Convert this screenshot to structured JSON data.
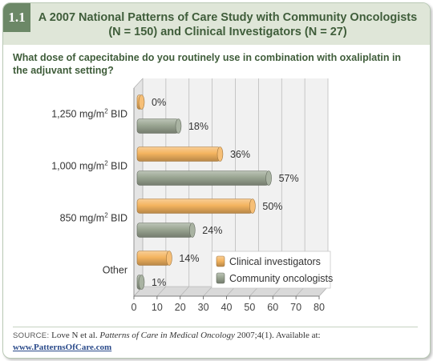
{
  "figure": {
    "number": "1.1",
    "title_line1": "A 2007 National Patterns of Care Study with Community Oncologists",
    "title_line2": "(N = 150) and Clinical Investigators (N = 27)"
  },
  "question": "What dose of capecitabine do you routinely use in combination with oxaliplatin in the adjuvant setting?",
  "chart_data": {
    "type": "bar",
    "orientation": "horizontal",
    "categories": [
      {
        "label": "1,250 mg/m",
        "sup": "2",
        "suffix": " BID"
      },
      {
        "label": "1,000 mg/m",
        "sup": "2",
        "suffix": " BID"
      },
      {
        "label": "850 mg/m",
        "sup": "2",
        "suffix": " BID"
      },
      {
        "label": "Other",
        "sup": "",
        "suffix": ""
      }
    ],
    "series": [
      {
        "name": "Clinical investigators",
        "values": [
          0,
          36,
          50,
          14
        ],
        "color": "#f4b45f"
      },
      {
        "name": "Community oncologists",
        "values": [
          18,
          57,
          24,
          1
        ],
        "color": "#9aa592"
      }
    ],
    "value_suffix": "%",
    "xlim": [
      0,
      80
    ],
    "xticks": [
      0,
      10,
      20,
      30,
      40,
      50,
      60,
      70,
      80
    ],
    "legend_position": "bottom-right",
    "grid": true
  },
  "source": {
    "label": "SOURCE:",
    "text_before": " Love N et al. ",
    "italic": "Patterns of Care in Medical Oncology",
    "text_after": " 2007;4(1). Available at:",
    "url": "www.PatternsOfCare.com"
  },
  "colors": {
    "header_bg": "#dfe6d8",
    "badge": "#6c8867",
    "title_text": "#3f5d3a"
  }
}
